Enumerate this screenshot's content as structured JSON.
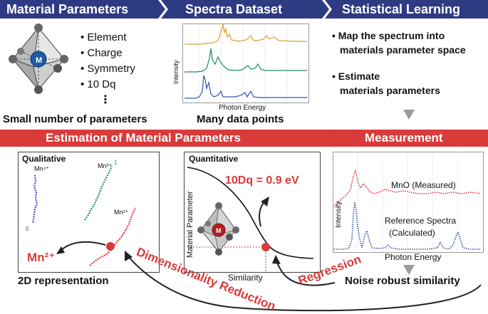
{
  "header": {
    "step1": "Material Parameters",
    "step2": "Spectra Dataset",
    "step3": "Statistical Learning"
  },
  "params": {
    "items": [
      "• Element",
      "• Charge",
      "• Symmetry",
      "• 10 Dq"
    ],
    "ellipsis": "⋮",
    "caption": "Small number of parameters",
    "center_atom": "M"
  },
  "spectra": {
    "ylabel": "Intensity",
    "xlabel": "Photon Energy",
    "caption": "Many data points"
  },
  "learning": {
    "bullet1_line1": "• Map the spectrum into",
    "bullet1_line2": "materials parameter space",
    "bullet2_line1": "• Estimate",
    "bullet2_line2": "materials parameters"
  },
  "estimation_title": "Estimation of Material Parameters",
  "measurement_title": "Measurement",
  "qualitative": {
    "title": "Qualitative",
    "mn4": "Mn⁴⁺",
    "mn3": "Mn³⁺",
    "mn2": "Mn²⁺",
    "result": "Mn²⁺",
    "tick0": "0",
    "tick1": "1",
    "caption": "2D representation"
  },
  "quantitative": {
    "title": "Quantitative",
    "result": "10Dq = 0.9 eV",
    "ylabel": "Material Parameter",
    "xlabel": "Similarity",
    "center_atom": "M"
  },
  "measurement": {
    "ylabel": "Intensity",
    "measured_label": "MnO (Measured)",
    "reference_line1": "Reference Spectra",
    "reference_line2": "(Calculated)",
    "xlabel": "Photon Energy",
    "caption": "Noise robust similarity"
  },
  "arrows": {
    "regression": "Regression",
    "dimensionality": "Dimensionality Reduction"
  },
  "colors": {
    "navy": "#2e3a82",
    "red": "#d93a3a",
    "orange": "#d9a22a",
    "teal": "#1e8a6e",
    "blue": "#3a4fae"
  }
}
